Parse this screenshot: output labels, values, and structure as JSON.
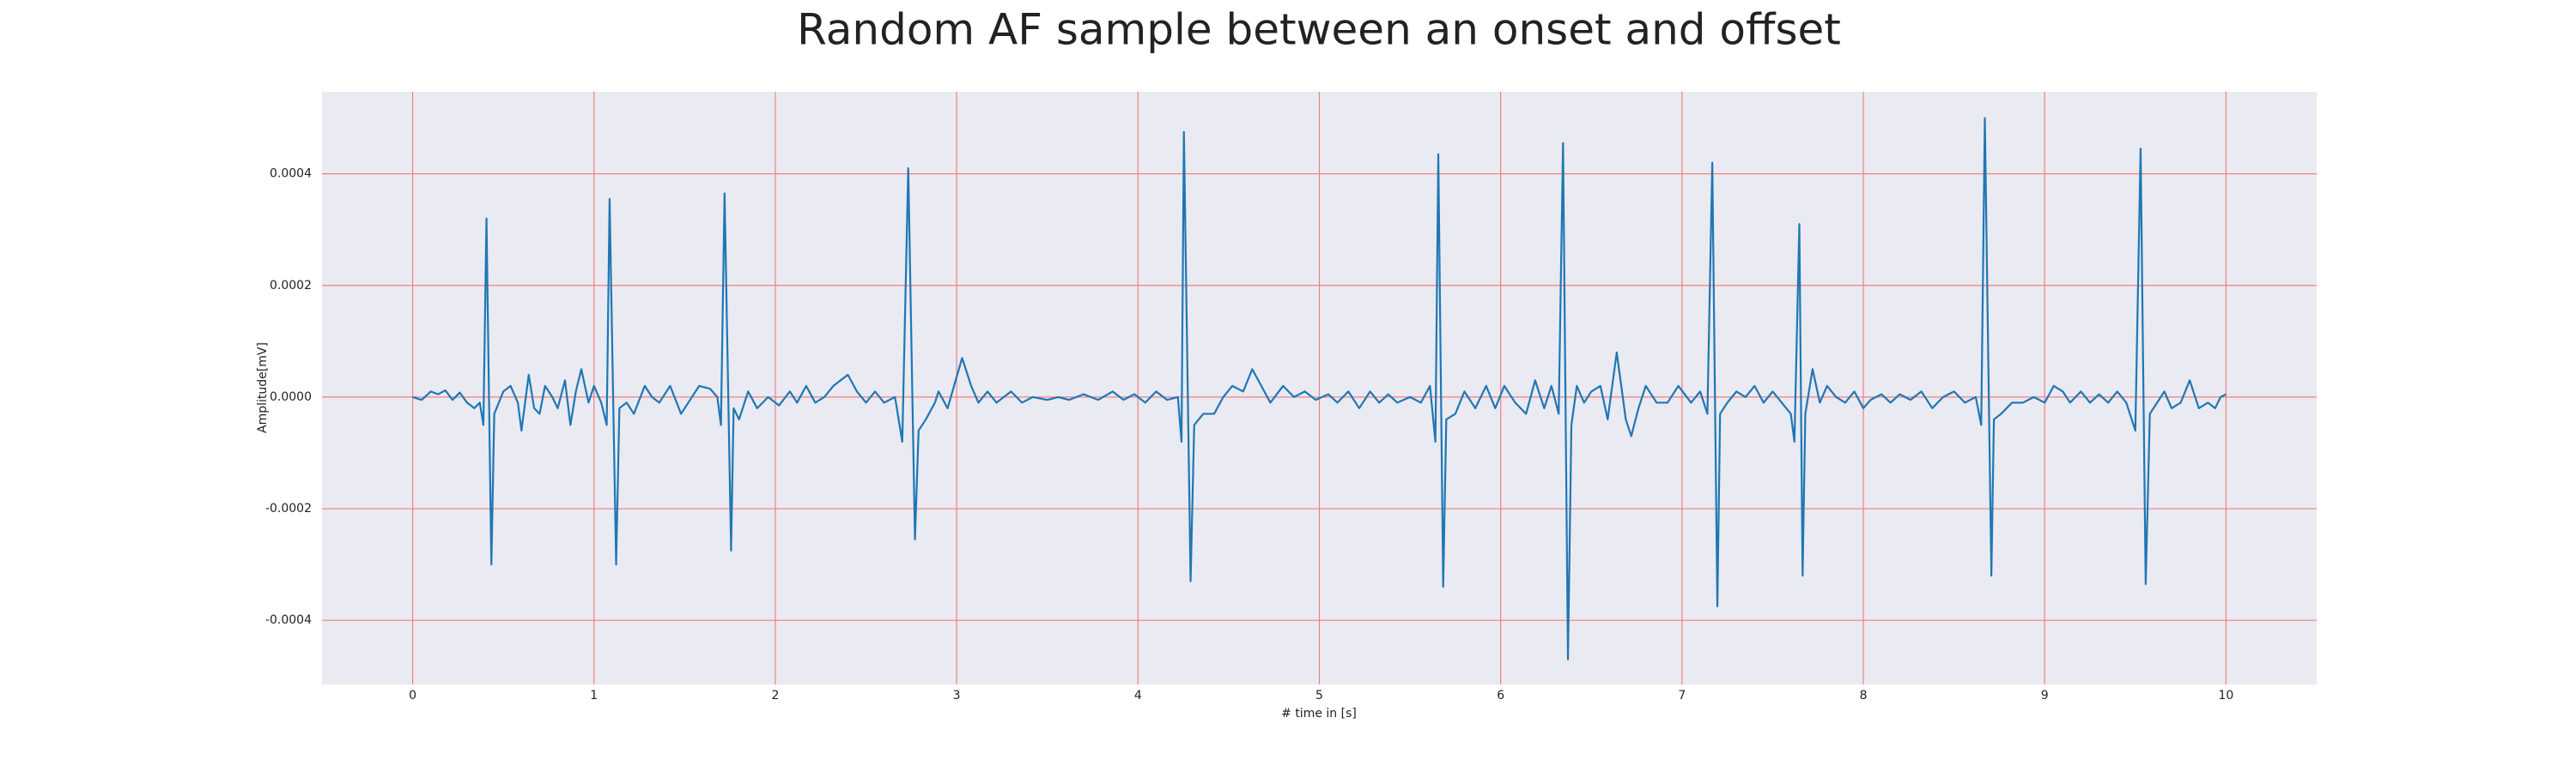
{
  "chart_data": {
    "type": "line",
    "title": "Random AF sample between an onset and offset",
    "x_label": "# time in [s]",
    "y_label": "Amplitude[mV]",
    "color": "#1f77b4",
    "grid": true,
    "grid_color": "#f08080",
    "background": "#eaeaf2",
    "xlim": [
      -0.5,
      10.5
    ],
    "ylim": [
      -0.000515,
      0.000547
    ],
    "xticks": [
      0,
      1,
      2,
      3,
      4,
      5,
      6,
      7,
      8,
      9,
      10
    ],
    "yticks": [
      -0.0004,
      -0.0002,
      {
        "value": 0,
        "label": "0.0000"
      },
      0.0002,
      0.0004
    ],
    "x": [
      0,
      0.05,
      0.1,
      0.14,
      0.18,
      0.22,
      0.26,
      0.3,
      0.34,
      0.37,
      0.39,
      0.407,
      0.434,
      0.45,
      0.5,
      0.54,
      0.58,
      0.6,
      0.64,
      0.67,
      0.7,
      0.73,
      0.77,
      0.8,
      0.84,
      0.87,
      0.9,
      0.93,
      0.97,
      1.0,
      1.04,
      1.07,
      1.086,
      1.122,
      1.14,
      1.18,
      1.22,
      1.28,
      1.32,
      1.36,
      1.42,
      1.48,
      1.52,
      1.58,
      1.64,
      1.68,
      1.7,
      1.72,
      1.756,
      1.77,
      1.8,
      1.85,
      1.9,
      1.96,
      2.02,
      2.08,
      2.12,
      2.17,
      2.22,
      2.27,
      2.32,
      2.4,
      2.45,
      2.5,
      2.55,
      2.6,
      2.66,
      2.7,
      2.733,
      2.77,
      2.79,
      2.83,
      2.88,
      2.9,
      2.95,
      3.03,
      3.08,
      3.12,
      3.17,
      3.22,
      3.3,
      3.36,
      3.42,
      3.5,
      3.56,
      3.62,
      3.7,
      3.78,
      3.86,
      3.92,
      3.98,
      4.04,
      4.1,
      4.16,
      4.22,
      4.24,
      4.253,
      4.29,
      4.31,
      4.36,
      4.42,
      4.47,
      4.52,
      4.58,
      4.63,
      4.68,
      4.73,
      4.8,
      4.86,
      4.92,
      4.98,
      5.05,
      5.1,
      5.16,
      5.22,
      5.28,
      5.33,
      5.38,
      5.43,
      5.5,
      5.56,
      5.61,
      5.64,
      5.656,
      5.683,
      5.7,
      5.75,
      5.8,
      5.86,
      5.92,
      5.97,
      6.02,
      6.08,
      6.14,
      6.19,
      6.24,
      6.28,
      6.32,
      6.344,
      6.371,
      6.39,
      6.42,
      6.46,
      6.5,
      6.55,
      6.59,
      6.64,
      6.69,
      6.72,
      6.76,
      6.8,
      6.86,
      6.92,
      6.98,
      7.05,
      7.1,
      7.14,
      7.167,
      7.195,
      7.21,
      7.25,
      7.3,
      7.35,
      7.4,
      7.45,
      7.5,
      7.55,
      7.6,
      7.62,
      7.647,
      7.665,
      7.68,
      7.72,
      7.76,
      7.8,
      7.85,
      7.9,
      7.95,
      8.0,
      8.04,
      8.1,
      8.15,
      8.2,
      8.26,
      8.32,
      8.38,
      8.44,
      8.5,
      8.56,
      8.62,
      8.65,
      8.67,
      8.706,
      8.72,
      8.76,
      8.82,
      8.88,
      8.94,
      9.0,
      9.05,
      9.1,
      9.14,
      9.2,
      9.25,
      9.3,
      9.35,
      9.4,
      9.45,
      9.5,
      9.529,
      9.557,
      9.58,
      9.62,
      9.66,
      9.7,
      9.75,
      9.8,
      9.85,
      9.9,
      9.94,
      9.97,
      10.0
    ],
    "values": [
      0,
      -5e-06,
      1e-05,
      5e-06,
      1.2e-05,
      -5e-06,
      8e-06,
      -1e-05,
      -2e-05,
      -1e-05,
      -5e-05,
      0.00032,
      -0.0003,
      -3e-05,
      1e-05,
      2e-05,
      -1e-05,
      -6e-05,
      4e-05,
      -2e-05,
      -3e-05,
      2e-05,
      0,
      -2e-05,
      3e-05,
      -5e-05,
      1e-05,
      5e-05,
      -1e-05,
      2e-05,
      -1e-05,
      -5e-05,
      0.000355,
      -0.0003,
      -2e-05,
      -1e-05,
      -3e-05,
      2e-05,
      0,
      -1e-05,
      2e-05,
      -3e-05,
      -1e-05,
      2e-05,
      1.5e-05,
      0,
      -5e-05,
      0.000365,
      -0.000275,
      -2e-05,
      -4e-05,
      1e-05,
      -2e-05,
      0,
      -1.5e-05,
      1e-05,
      -1e-05,
      2e-05,
      -1e-05,
      0,
      2e-05,
      4e-05,
      1e-05,
      -1e-05,
      1e-05,
      -1e-05,
      0,
      -8e-05,
      0.00041,
      -0.000255,
      -6e-05,
      -4e-05,
      -1e-05,
      1e-05,
      -2e-05,
      7e-05,
      2e-05,
      -1e-05,
      1e-05,
      -1e-05,
      1e-05,
      -1e-05,
      0,
      -5e-06,
      0,
      -5e-06,
      5e-06,
      -5e-06,
      1e-05,
      -5e-06,
      5e-06,
      -1e-05,
      1e-05,
      -5e-06,
      0,
      -8e-05,
      0.000475,
      -0.00033,
      -5e-05,
      -3e-05,
      -3e-05,
      0,
      2e-05,
      1e-05,
      5e-05,
      2e-05,
      -1e-05,
      2e-05,
      0,
      1e-05,
      -5e-06,
      5e-06,
      -1e-05,
      1e-05,
      -2e-05,
      1e-05,
      -1e-05,
      5e-06,
      -1e-05,
      0,
      -1e-05,
      2e-05,
      -8e-05,
      0.000435,
      -0.00034,
      -4e-05,
      -3e-05,
      1e-05,
      -2e-05,
      2e-05,
      -2e-05,
      2e-05,
      -1e-05,
      -3e-05,
      3e-05,
      -2e-05,
      2e-05,
      -3e-05,
      0.000455,
      -0.00047,
      -5e-05,
      2e-05,
      -1e-05,
      1e-05,
      2e-05,
      -4e-05,
      8e-05,
      -4e-05,
      -7e-05,
      -2e-05,
      2e-05,
      -1e-05,
      -1e-05,
      2e-05,
      -1e-05,
      1e-05,
      -3e-05,
      0.00042,
      -0.000375,
      -3e-05,
      -1e-05,
      1e-05,
      0,
      2e-05,
      -1e-05,
      1e-05,
      -1e-05,
      -3e-05,
      -8e-05,
      0.00031,
      -0.00032,
      -3e-05,
      5e-05,
      -1e-05,
      2e-05,
      0,
      -1e-05,
      1e-05,
      -2e-05,
      -5e-06,
      5e-06,
      -1e-05,
      5e-06,
      -5e-06,
      1e-05,
      -2e-05,
      0,
      1e-05,
      -1e-05,
      0,
      -5e-05,
      0.0005,
      -0.00032,
      -4e-05,
      -3e-05,
      -1e-05,
      -1e-05,
      0,
      -1e-05,
      2e-05,
      1e-05,
      -1e-05,
      1e-05,
      -1e-05,
      5e-06,
      -1e-05,
      1e-05,
      -1e-05,
      -6e-05,
      0.000445,
      -0.000335,
      -3e-05,
      -1e-05,
      1e-05,
      -2e-05,
      -1e-05,
      3e-05,
      -2e-05,
      -1e-05,
      -2e-05,
      0,
      5e-06
    ]
  }
}
